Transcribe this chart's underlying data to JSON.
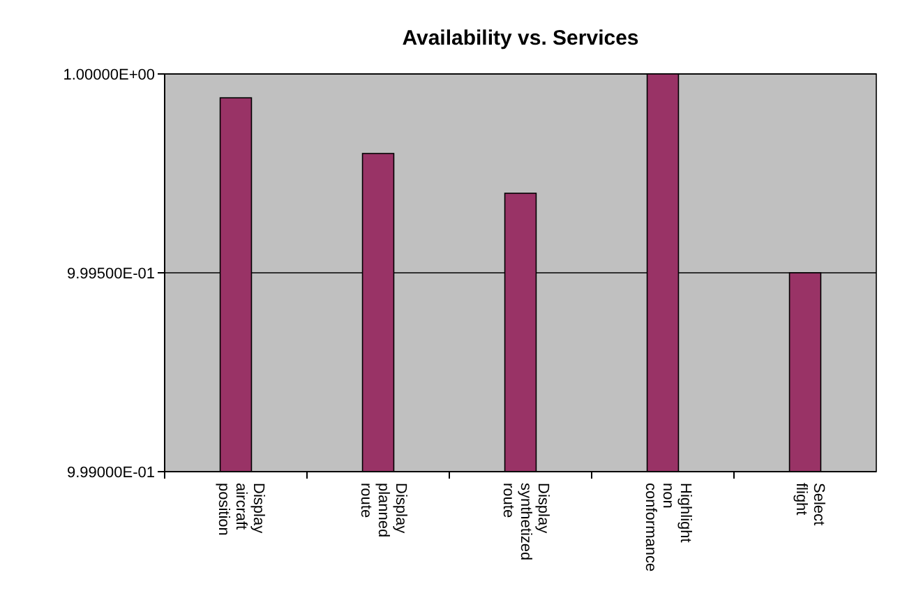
{
  "chart_data": {
    "type": "bar",
    "title": "Availability vs. Services",
    "categories": [
      "Display aircraft position",
      "Display planned route",
      "Display synthetized route",
      "Highlight non conformance",
      "Select flight"
    ],
    "values": [
      0.99994,
      0.9998,
      0.9997,
      1.0,
      0.9995
    ],
    "color": "#993366",
    "ylim": [
      0.999,
      1.0
    ],
    "yticks": [
      {
        "value": 0.999,
        "label": "9.99000E-01"
      },
      {
        "value": 0.9995,
        "label": "9.99500E-01"
      },
      {
        "value": 1.0,
        "label": "1.00000E+00"
      }
    ],
    "grid": "y"
  }
}
